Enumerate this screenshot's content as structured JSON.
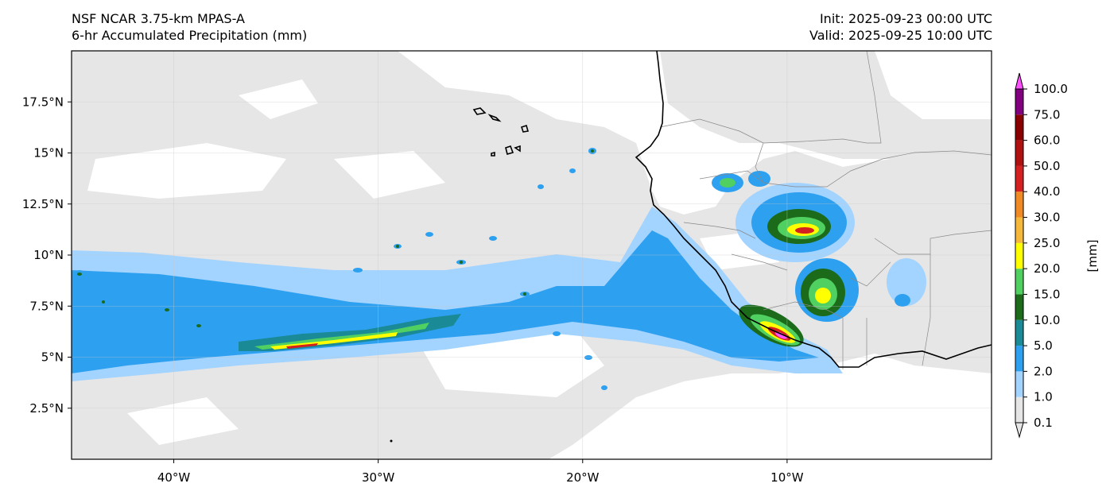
{
  "header": {
    "model": "NSF NCAR 3.75-km MPAS-A",
    "field": "6-hr Accumulated Precipitation (mm)",
    "init": "Init: 2025-09-23 00:00 UTC",
    "valid": "Valid: 2025-09-25 10:00 UTC"
  },
  "map": {
    "lon_range": [
      -45,
      0
    ],
    "lat_range": [
      0,
      20
    ],
    "x_ticks": [
      {
        "lon": -40,
        "label": "40°W"
      },
      {
        "lon": -30,
        "label": "30°W"
      },
      {
        "lon": -20,
        "label": "20°W"
      },
      {
        "lon": -10,
        "label": "10°W"
      }
    ],
    "y_ticks": [
      {
        "lat": 2.5,
        "label": "2.5°N"
      },
      {
        "lat": 5,
        "label": "5°N"
      },
      {
        "lat": 7.5,
        "label": "7.5°N"
      },
      {
        "lat": 10,
        "label": "10°N"
      },
      {
        "lat": 12.5,
        "label": "12.5°N"
      },
      {
        "lat": 15,
        "label": "15°N"
      },
      {
        "lat": 17.5,
        "label": "17.5°N"
      }
    ]
  },
  "colorbar": {
    "unit_label": "[mm]",
    "levels": [
      {
        "label": "0.1",
        "color": "#e6e6e6"
      },
      {
        "label": "1.0",
        "color": "#a3d3ff"
      },
      {
        "label": "2.0",
        "color": "#2ea0f0"
      },
      {
        "label": "5.0",
        "color": "#1a8a96"
      },
      {
        "label": "10.0",
        "color": "#1b6b1b"
      },
      {
        "label": "15.0",
        "color": "#50d060"
      },
      {
        "label": "20.0",
        "color": "#ffff00"
      },
      {
        "label": "25.0",
        "color": "#f5b83a"
      },
      {
        "label": "30.0",
        "color": "#ef8a24"
      },
      {
        "label": "40.0",
        "color": "#d42020"
      },
      {
        "label": "50.0",
        "color": "#b01010"
      },
      {
        "label": "60.0",
        "color": "#8a0000"
      },
      {
        "label": "75.0",
        "color": "#800080"
      },
      {
        "label": "100.0",
        "color": "#ff50ff"
      }
    ]
  }
}
